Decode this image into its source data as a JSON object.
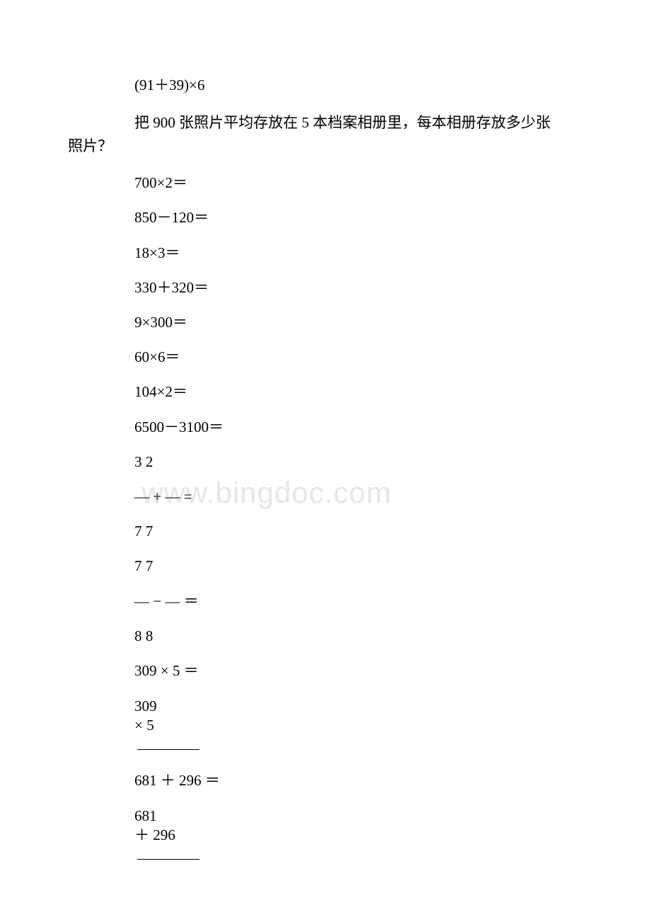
{
  "watermark": "www.bingdoc.com",
  "expr1": "(91＋39)×6",
  "word_problem_line1": "把 900 张照片平均存放在 5 本档案相册里，每本相册存放多少张",
  "word_problem_line2": "照片？",
  "eq1": "700×2＝",
  "eq2": "850－120＝",
  "eq3": "18×3＝",
  "eq4": "330＋320＝",
  "eq5": "9×300＝",
  "eq6": "60×6＝",
  "eq7": "104×2＝",
  "eq8": "6500－3100＝",
  "frac1_top": "3  2",
  "frac1_mid": "— + — =",
  "frac1_bot": "7  7",
  "frac2_top": "7  7",
  "frac2_mid": "— − — ＝",
  "frac2_bot": "8  8",
  "mul1_header": "309 × 5 ＝",
  "mul1_line1": " 309",
  "mul1_line2": "×  5",
  "add1_header": "681 ＋ 296 ＝",
  "add1_line1": " 681",
  "add1_line2": "＋ 296"
}
